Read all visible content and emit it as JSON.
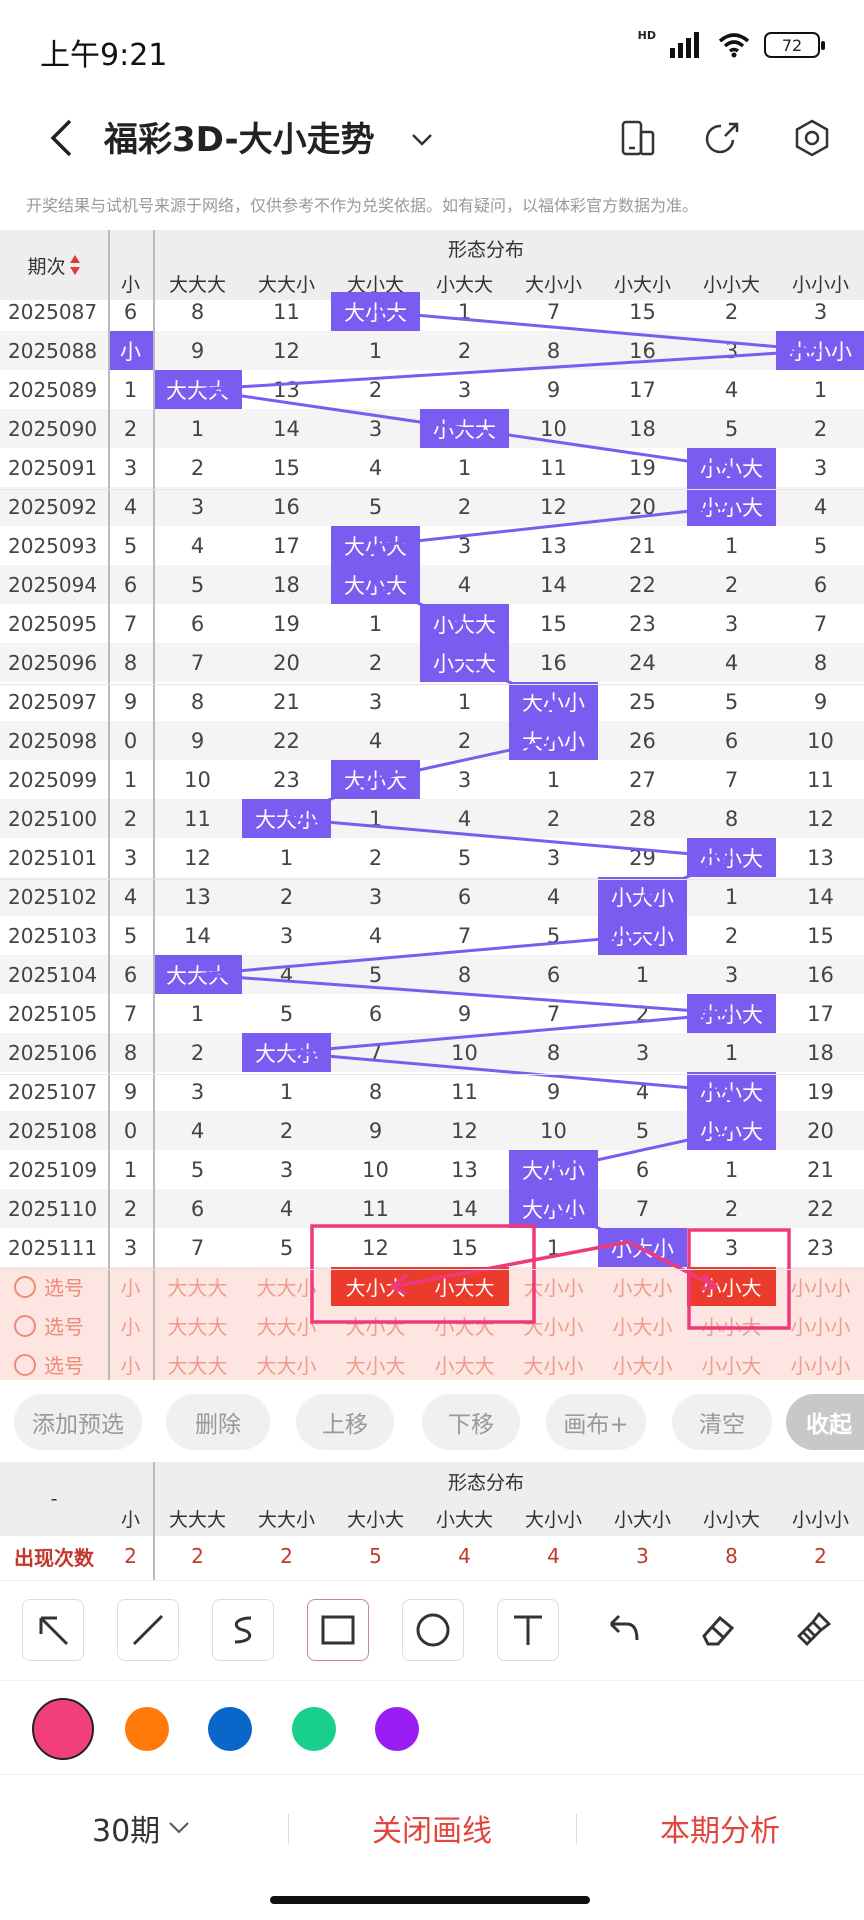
{
  "status_bar": {
    "time": "上午9:21",
    "network": "HD",
    "battery": "72"
  },
  "header": {
    "title": "福彩3D-大小走势"
  },
  "disclaimer": "开奖结果与试机号来源于网络，仅供参考不作为兑奖依据。如有疑问，以福体彩官方数据为准。",
  "table": {
    "period_header": "期次",
    "group_header": "形态分布",
    "prev_col_header": "小",
    "columns": [
      "大大大",
      "大大小",
      "大小大",
      "小大大",
      "大小小",
      "小大小",
      "小小大",
      "小小小"
    ],
    "rows": [
      {
        "period": "2025087",
        "edge": "6",
        "cells": [
          "8",
          "11",
          "大小大",
          "1",
          "7",
          "15",
          "2",
          "3"
        ],
        "hit": 2
      },
      {
        "period": "2025088",
        "edge": "小",
        "cells": [
          "9",
          "12",
          "1",
          "2",
          "8",
          "16",
          "3",
          "小小小"
        ],
        "hit": 7
      },
      {
        "period": "2025089",
        "edge": "1",
        "cells": [
          "大大大",
          "13",
          "2",
          "3",
          "9",
          "17",
          "4",
          "1"
        ],
        "hit": 0
      },
      {
        "period": "2025090",
        "edge": "2",
        "cells": [
          "1",
          "14",
          "3",
          "小大大",
          "10",
          "18",
          "5",
          "2"
        ],
        "hit": 3
      },
      {
        "period": "2025091",
        "edge": "3",
        "cells": [
          "2",
          "15",
          "4",
          "1",
          "11",
          "19",
          "小小大",
          "3"
        ],
        "hit": 6
      },
      {
        "period": "2025092",
        "edge": "4",
        "cells": [
          "3",
          "16",
          "5",
          "2",
          "12",
          "20",
          "小小大",
          "4"
        ],
        "hit": 6
      },
      {
        "period": "2025093",
        "edge": "5",
        "cells": [
          "4",
          "17",
          "大小大",
          "3",
          "13",
          "21",
          "1",
          "5"
        ],
        "hit": 2
      },
      {
        "period": "2025094",
        "edge": "6",
        "cells": [
          "5",
          "18",
          "大小大",
          "4",
          "14",
          "22",
          "2",
          "6"
        ],
        "hit": 2
      },
      {
        "period": "2025095",
        "edge": "7",
        "cells": [
          "6",
          "19",
          "1",
          "小大大",
          "15",
          "23",
          "3",
          "7"
        ],
        "hit": 3
      },
      {
        "period": "2025096",
        "edge": "8",
        "cells": [
          "7",
          "20",
          "2",
          "小大大",
          "16",
          "24",
          "4",
          "8"
        ],
        "hit": 3
      },
      {
        "period": "2025097",
        "edge": "9",
        "cells": [
          "8",
          "21",
          "3",
          "1",
          "大小小",
          "25",
          "5",
          "9"
        ],
        "hit": 4
      },
      {
        "period": "2025098",
        "edge": "0",
        "cells": [
          "9",
          "22",
          "4",
          "2",
          "大小小",
          "26",
          "6",
          "10"
        ],
        "hit": 4
      },
      {
        "period": "2025099",
        "edge": "1",
        "cells": [
          "10",
          "23",
          "大小大",
          "3",
          "1",
          "27",
          "7",
          "11"
        ],
        "hit": 2
      },
      {
        "period": "2025100",
        "edge": "2",
        "cells": [
          "11",
          "大大小",
          "1",
          "4",
          "2",
          "28",
          "8",
          "12"
        ],
        "hit": 1
      },
      {
        "period": "2025101",
        "edge": "3",
        "cells": [
          "12",
          "1",
          "2",
          "5",
          "3",
          "29",
          "小小大",
          "13"
        ],
        "hit": 6
      },
      {
        "period": "2025102",
        "edge": "4",
        "cells": [
          "13",
          "2",
          "3",
          "6",
          "4",
          "小大小",
          "1",
          "14"
        ],
        "hit": 5
      },
      {
        "period": "2025103",
        "edge": "5",
        "cells": [
          "14",
          "3",
          "4",
          "7",
          "5",
          "小大小",
          "2",
          "15"
        ],
        "hit": 5
      },
      {
        "period": "2025104",
        "edge": "6",
        "cells": [
          "大大大",
          "4",
          "5",
          "8",
          "6",
          "1",
          "3",
          "16"
        ],
        "hit": 0
      },
      {
        "period": "2025105",
        "edge": "7",
        "cells": [
          "1",
          "5",
          "6",
          "9",
          "7",
          "2",
          "小小大",
          "17"
        ],
        "hit": 6
      },
      {
        "period": "2025106",
        "edge": "8",
        "cells": [
          "2",
          "大大小",
          "7",
          "10",
          "8",
          "3",
          "1",
          "18"
        ],
        "hit": 1
      },
      {
        "period": "2025107",
        "edge": "9",
        "cells": [
          "3",
          "1",
          "8",
          "11",
          "9",
          "4",
          "小小大",
          "19"
        ],
        "hit": 6
      },
      {
        "period": "2025108",
        "edge": "0",
        "cells": [
          "4",
          "2",
          "9",
          "12",
          "10",
          "5",
          "小小大",
          "20"
        ],
        "hit": 6
      },
      {
        "period": "2025109",
        "edge": "1",
        "cells": [
          "5",
          "3",
          "10",
          "13",
          "大小小",
          "6",
          "1",
          "21"
        ],
        "hit": 4
      },
      {
        "period": "2025110",
        "edge": "2",
        "cells": [
          "6",
          "4",
          "11",
          "14",
          "大小小",
          "7",
          "2",
          "22"
        ],
        "hit": 4
      },
      {
        "period": "2025111",
        "edge": "3",
        "cells": [
          "7",
          "5",
          "12",
          "15",
          "1",
          "小大小",
          "3",
          "23"
        ],
        "hit": 5
      }
    ],
    "select_rows": [
      {
        "label": "选号",
        "edge": "小",
        "chosen": [
          2,
          3,
          6
        ]
      },
      {
        "label": "选号",
        "edge": "小",
        "chosen": []
      },
      {
        "label": "选号",
        "edge": "小",
        "chosen": []
      }
    ],
    "select_row_1_cells": [
      "大大大",
      "大大小",
      "大小大",
      "小大大",
      "大小小",
      "小大小",
      "小小大",
      "小小小"
    ]
  },
  "actions": [
    "添加预选",
    "删除",
    "上移",
    "下移",
    "画布+",
    "清空",
    "收起"
  ],
  "stats": {
    "dash": "-",
    "group_header": "形态分布",
    "prev_col_header": "小",
    "row_label": "出现次数",
    "edge_value": "2",
    "columns": [
      "大大大",
      "大大小",
      "大小大",
      "小大大",
      "大小小",
      "小大小",
      "小小大",
      "小小小"
    ],
    "values": [
      "2",
      "2",
      "5",
      "4",
      "4",
      "3",
      "8",
      "2"
    ]
  },
  "tools": [
    "arrow-tool",
    "line-tool",
    "curve-tool",
    "rectangle-tool",
    "circle-tool",
    "text-tool",
    "undo-tool",
    "eraser-tool",
    "clear-tool"
  ],
  "colors": [
    "#f03f7a",
    "#ff7a0a",
    "#0a66c9",
    "#18cf8c",
    "#9a1df5"
  ],
  "bottom_bar": {
    "period_select": "30期",
    "close_lines": "关闭画线",
    "analysis": "本期分析"
  },
  "theme": {
    "hit_color": "#7a5cf0",
    "chosen_color": "#ea3b2c",
    "accent": "#e2453d",
    "annotation": "#ee3a7c"
  }
}
